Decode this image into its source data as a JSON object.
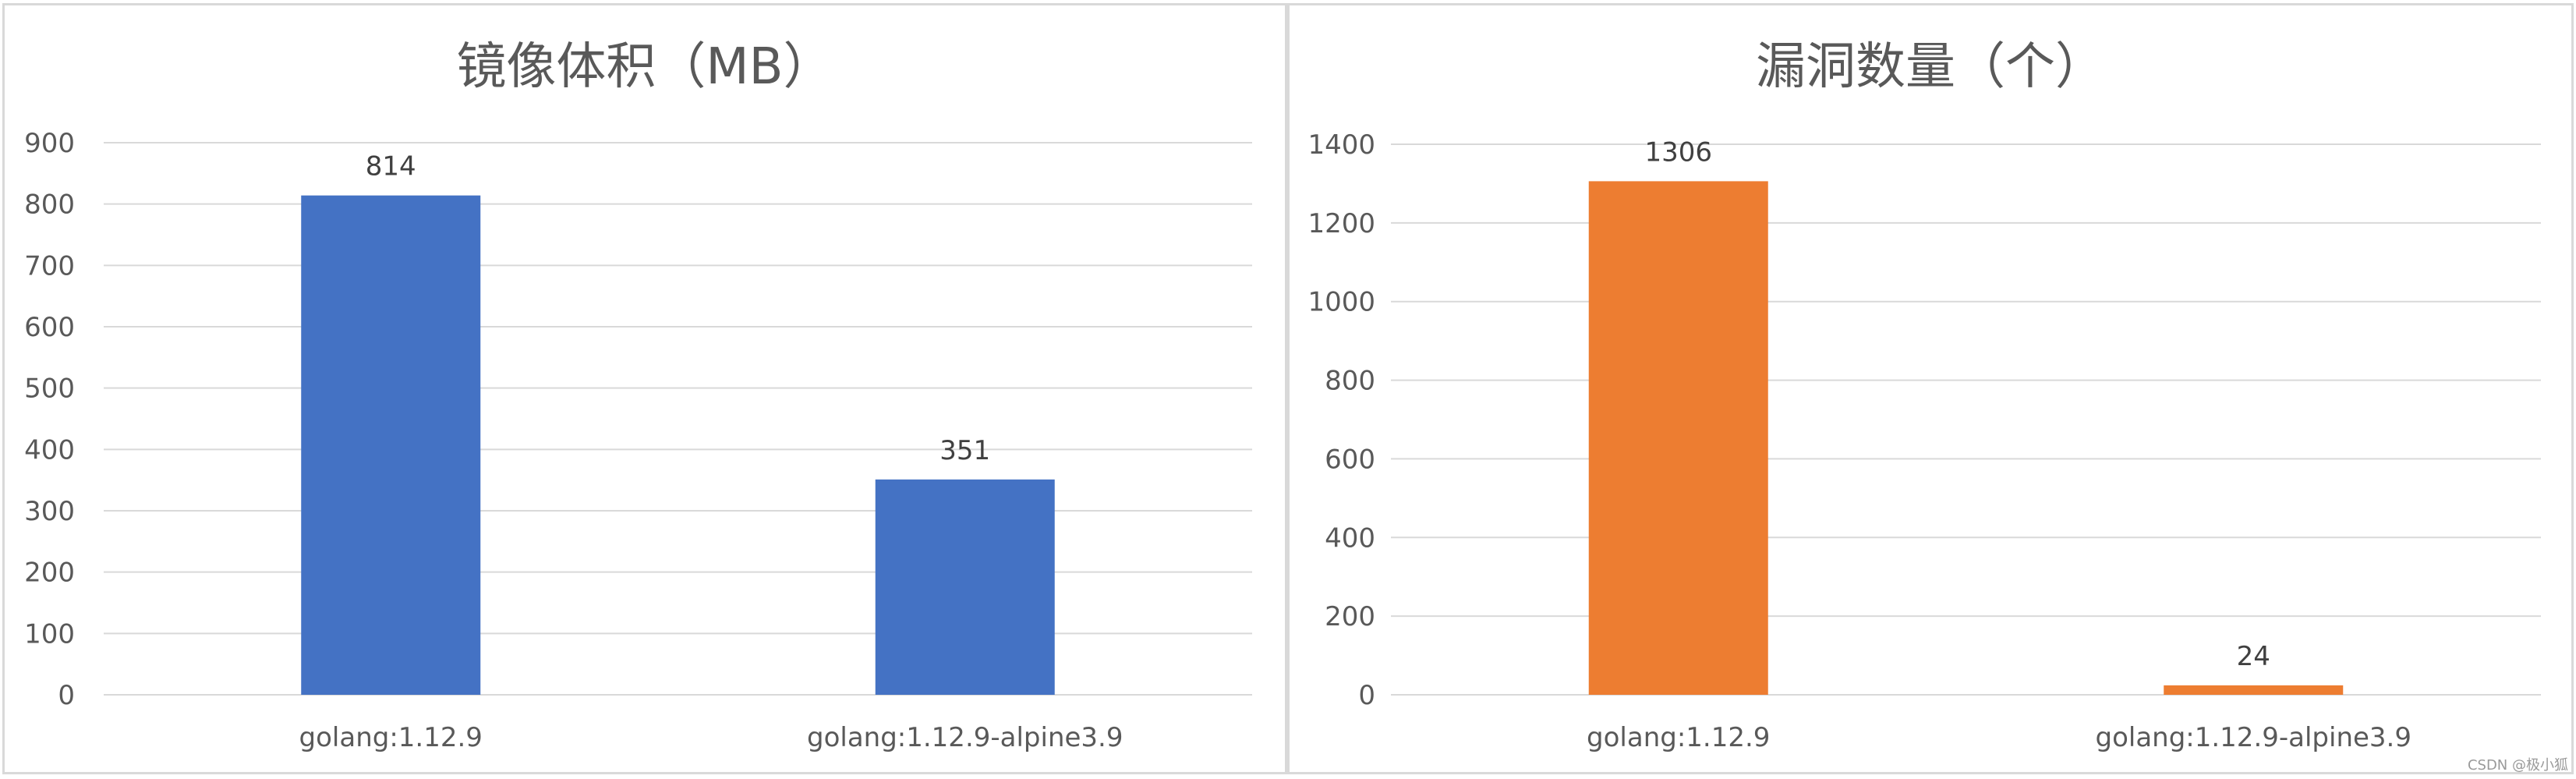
{
  "chart_data": [
    {
      "type": "bar",
      "title": "镜像体积（MB）",
      "categories": [
        "golang:1.12.9",
        "golang:1.12.9-alpine3.9"
      ],
      "series": [
        {
          "values": [
            814,
            351
          ],
          "color": "#4472c4"
        }
      ],
      "data_labels": [
        "814",
        "351"
      ],
      "ylim": [
        0,
        900
      ],
      "yticks": [
        0,
        100,
        200,
        300,
        400,
        500,
        600,
        700,
        800,
        900
      ],
      "grid": true,
      "legend": "none"
    },
    {
      "type": "bar",
      "title": "漏洞数量（个）",
      "categories": [
        "golang:1.12.9",
        "golang:1.12.9-alpine3.9"
      ],
      "series": [
        {
          "values": [
            1306,
            24
          ],
          "color": "#ed7d31"
        }
      ],
      "data_labels": [
        "1306",
        "24"
      ],
      "ylim": [
        0,
        1400
      ],
      "yticks": [
        0,
        200,
        400,
        600,
        800,
        1000,
        1200,
        1400
      ],
      "grid": true,
      "legend": "none"
    }
  ],
  "watermark": "CSDN @极小狐",
  "colors": {
    "grid": "#d9d9d9",
    "axis_text": "#595959",
    "title": "#595959",
    "label": "#404040"
  }
}
